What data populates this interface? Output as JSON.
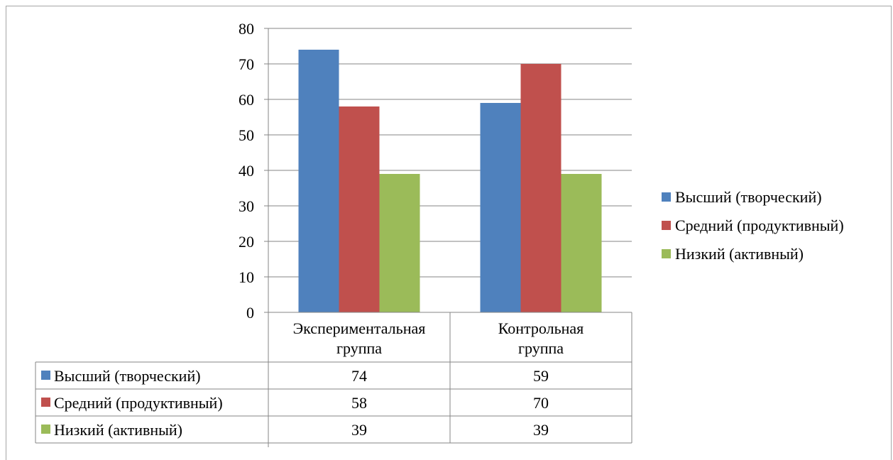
{
  "chart_data": {
    "type": "bar",
    "categories": [
      "Экспериментальная группа",
      "Контрольная группа"
    ],
    "category_lines": [
      [
        "Экспериментальная",
        "группа"
      ],
      [
        "Контрольная",
        "группа"
      ]
    ],
    "series": [
      {
        "name": "Высший (творческий)",
        "values": [
          74,
          59
        ],
        "color": "#4f81bd"
      },
      {
        "name": "Средний (продуктивный)",
        "values": [
          58,
          70
        ],
        "color": "#c0504d"
      },
      {
        "name": "Низкий (активный)",
        "values": [
          39,
          39
        ],
        "color": "#9bbb59"
      }
    ],
    "ylim": [
      0,
      80
    ],
    "yticks": [
      "0",
      "10",
      "20",
      "30",
      "40",
      "50",
      "60",
      "70",
      "80"
    ],
    "grid": true,
    "legend": "right",
    "data_table": true
  }
}
